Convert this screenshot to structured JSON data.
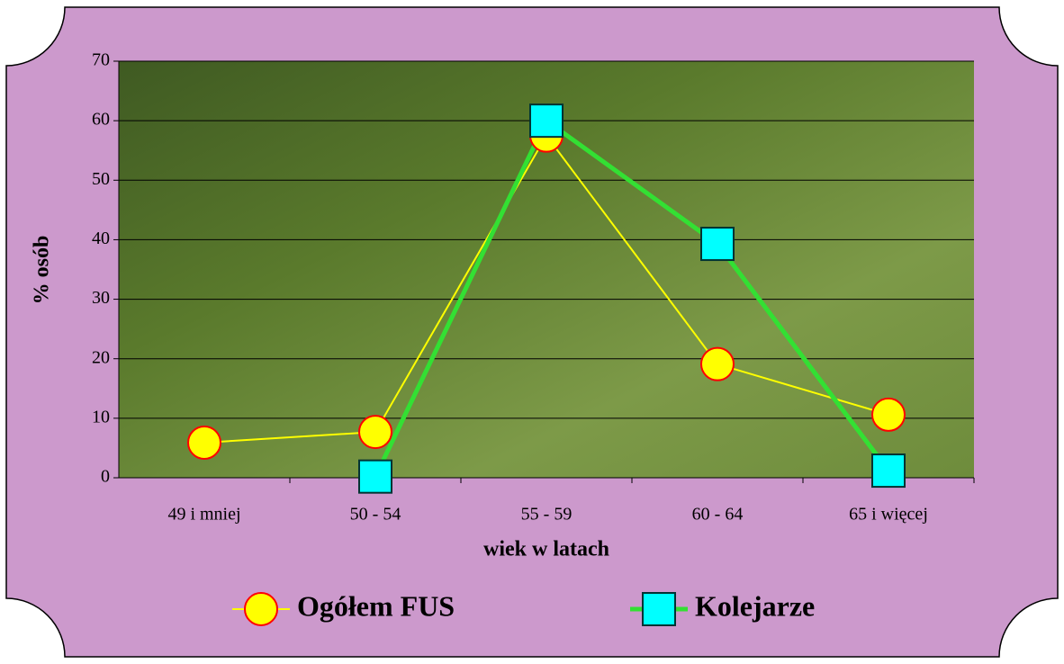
{
  "chart_data": {
    "type": "line",
    "x_label": "wiek w latach",
    "y_label": "% osób",
    "categories": [
      "49 i mniej",
      "50 - 54",
      "55 - 59",
      "60 - 64",
      "65  i więcej"
    ],
    "series": [
      {
        "name": "Ogółem FUS",
        "color": "#ffff00",
        "marker": "circle",
        "marker_fill": "#ffff00",
        "marker_edge": "#ff0000",
        "line_width": 2,
        "values": [
          5.9,
          7.7,
          57.5,
          19.1,
          10.6
        ]
      },
      {
        "name": "Kolejarze",
        "color": "#33e033",
        "marker": "square",
        "marker_fill": "#00ffff",
        "marker_edge": "#003333",
        "line_width": 5,
        "values": [
          null,
          0.2,
          60,
          39.3,
          1.2
        ]
      }
    ],
    "ylim": [
      0,
      70
    ],
    "yticks": [
      0,
      10,
      20,
      30,
      40,
      50,
      60,
      70
    ],
    "grid": true
  }
}
